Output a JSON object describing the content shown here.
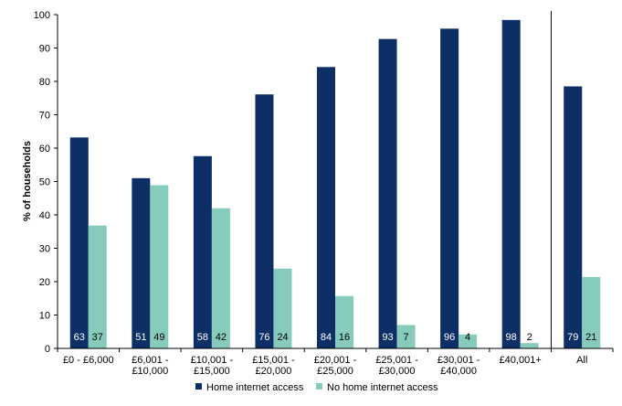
{
  "chart_data": {
    "type": "bar",
    "categories": [
      [
        "£0 - £6,000"
      ],
      [
        "£6,001 -",
        "£10,000"
      ],
      [
        "£10,001 -",
        "£15,000"
      ],
      [
        "£15,001 -",
        "£20,000"
      ],
      [
        "£20,001 -",
        "£25,000"
      ],
      [
        "£25,001 -",
        "£30,000"
      ],
      [
        "£30,001 -",
        "£40,000"
      ],
      [
        "£40,001+"
      ],
      [
        "All"
      ]
    ],
    "series": [
      {
        "name": "Home internet access",
        "color": "#0d2f66",
        "values": [
          63.2,
          51,
          57.6,
          76.1,
          84.3,
          92.7,
          95.8,
          98.4,
          78.5
        ],
        "labels": [
          "63",
          "51",
          "58",
          "76",
          "84",
          "93",
          "96",
          "98",
          "79"
        ]
      },
      {
        "name": "No home internet access",
        "color": "#87cbbd",
        "values": [
          36.8,
          48.9,
          42,
          23.9,
          15.7,
          7,
          4.2,
          1.6,
          21.4
        ],
        "labels": [
          "37",
          "49",
          "42",
          "24",
          "16",
          "7",
          "4",
          "2",
          "21"
        ]
      }
    ],
    "ylabel": "% of households",
    "ylim": [
      0,
      100
    ],
    "yticks": [
      0,
      10,
      20,
      30,
      40,
      50,
      60,
      70,
      80,
      90,
      100
    ],
    "separator_before_category": 8,
    "legend_position": "bottom",
    "grid": false
  }
}
